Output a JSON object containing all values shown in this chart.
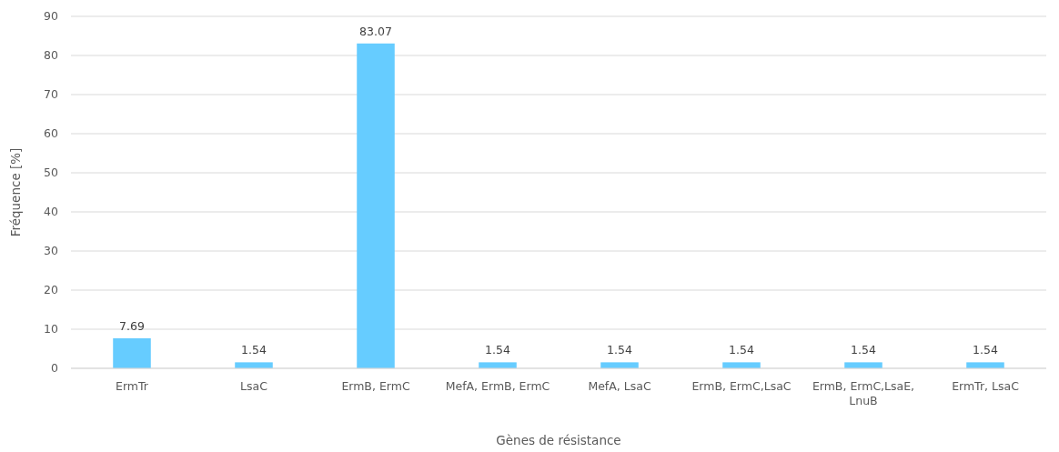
{
  "chart_data": {
    "type": "bar",
    "xlabel": "Gènes de résistance",
    "ylabel": "Fréquence [%]",
    "categories": [
      "ErmTr",
      "LsaC",
      "ErmB, ErmC",
      "MefA, ErmB, ErmC",
      "MefA, LsaC",
      "ErmB, ErmC,LsaC",
      "ErmB, ErmC,LsaE, LnuB",
      "ErmTr, LsaC"
    ],
    "values": [
      7.69,
      1.54,
      83.07,
      1.54,
      1.54,
      1.54,
      1.54,
      1.54
    ],
    "color": "#66ccff",
    "ylim": [
      0,
      90
    ],
    "yticks": [
      0,
      10,
      20,
      30,
      40,
      50,
      60,
      70,
      80,
      90
    ],
    "grid": "y",
    "data_labels": true
  }
}
